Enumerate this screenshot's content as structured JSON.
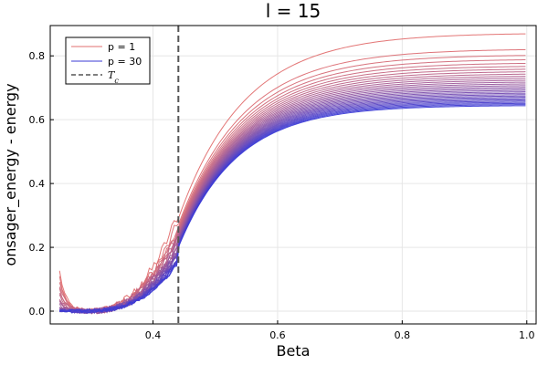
{
  "chart_data": {
    "type": "line",
    "title": "l = 15",
    "xlabel": "Beta",
    "ylabel": "onsager_energy - energy",
    "xlim": [
      0.235,
      1.015
    ],
    "ylim": [
      -0.04,
      0.895
    ],
    "xticks": [
      0.4,
      0.6,
      0.8,
      1.0
    ],
    "xtick_labels": [
      "0.4",
      "0.6",
      "0.8",
      "1.0"
    ],
    "yticks": [
      0.0,
      0.2,
      0.4,
      0.6,
      0.8
    ],
    "ytick_labels": [
      "0.0",
      "0.2",
      "0.4",
      "0.6",
      "0.8"
    ],
    "grid": true,
    "legend_placement": "top-left",
    "legend": [
      {
        "label": "p = 1",
        "color": "#e26f6f",
        "style": "solid"
      },
      {
        "label": "p = 30",
        "color": "#3b3bd6",
        "style": "solid"
      },
      {
        "label": "T",
        "subscript": "c",
        "color": "#555555",
        "style": "dashed"
      }
    ],
    "critical_x": 0.4407,
    "series_count": 30,
    "color_start": "#e26f6f",
    "color_end": "#3b3bd6",
    "x_range": [
      0.25,
      1.0
    ],
    "peak_first": 0.31,
    "peak_last": 0.15,
    "plateau_first": 0.872,
    "plateau_last": 0.645,
    "start_first": 0.125,
    "start_last": 0.0
  }
}
